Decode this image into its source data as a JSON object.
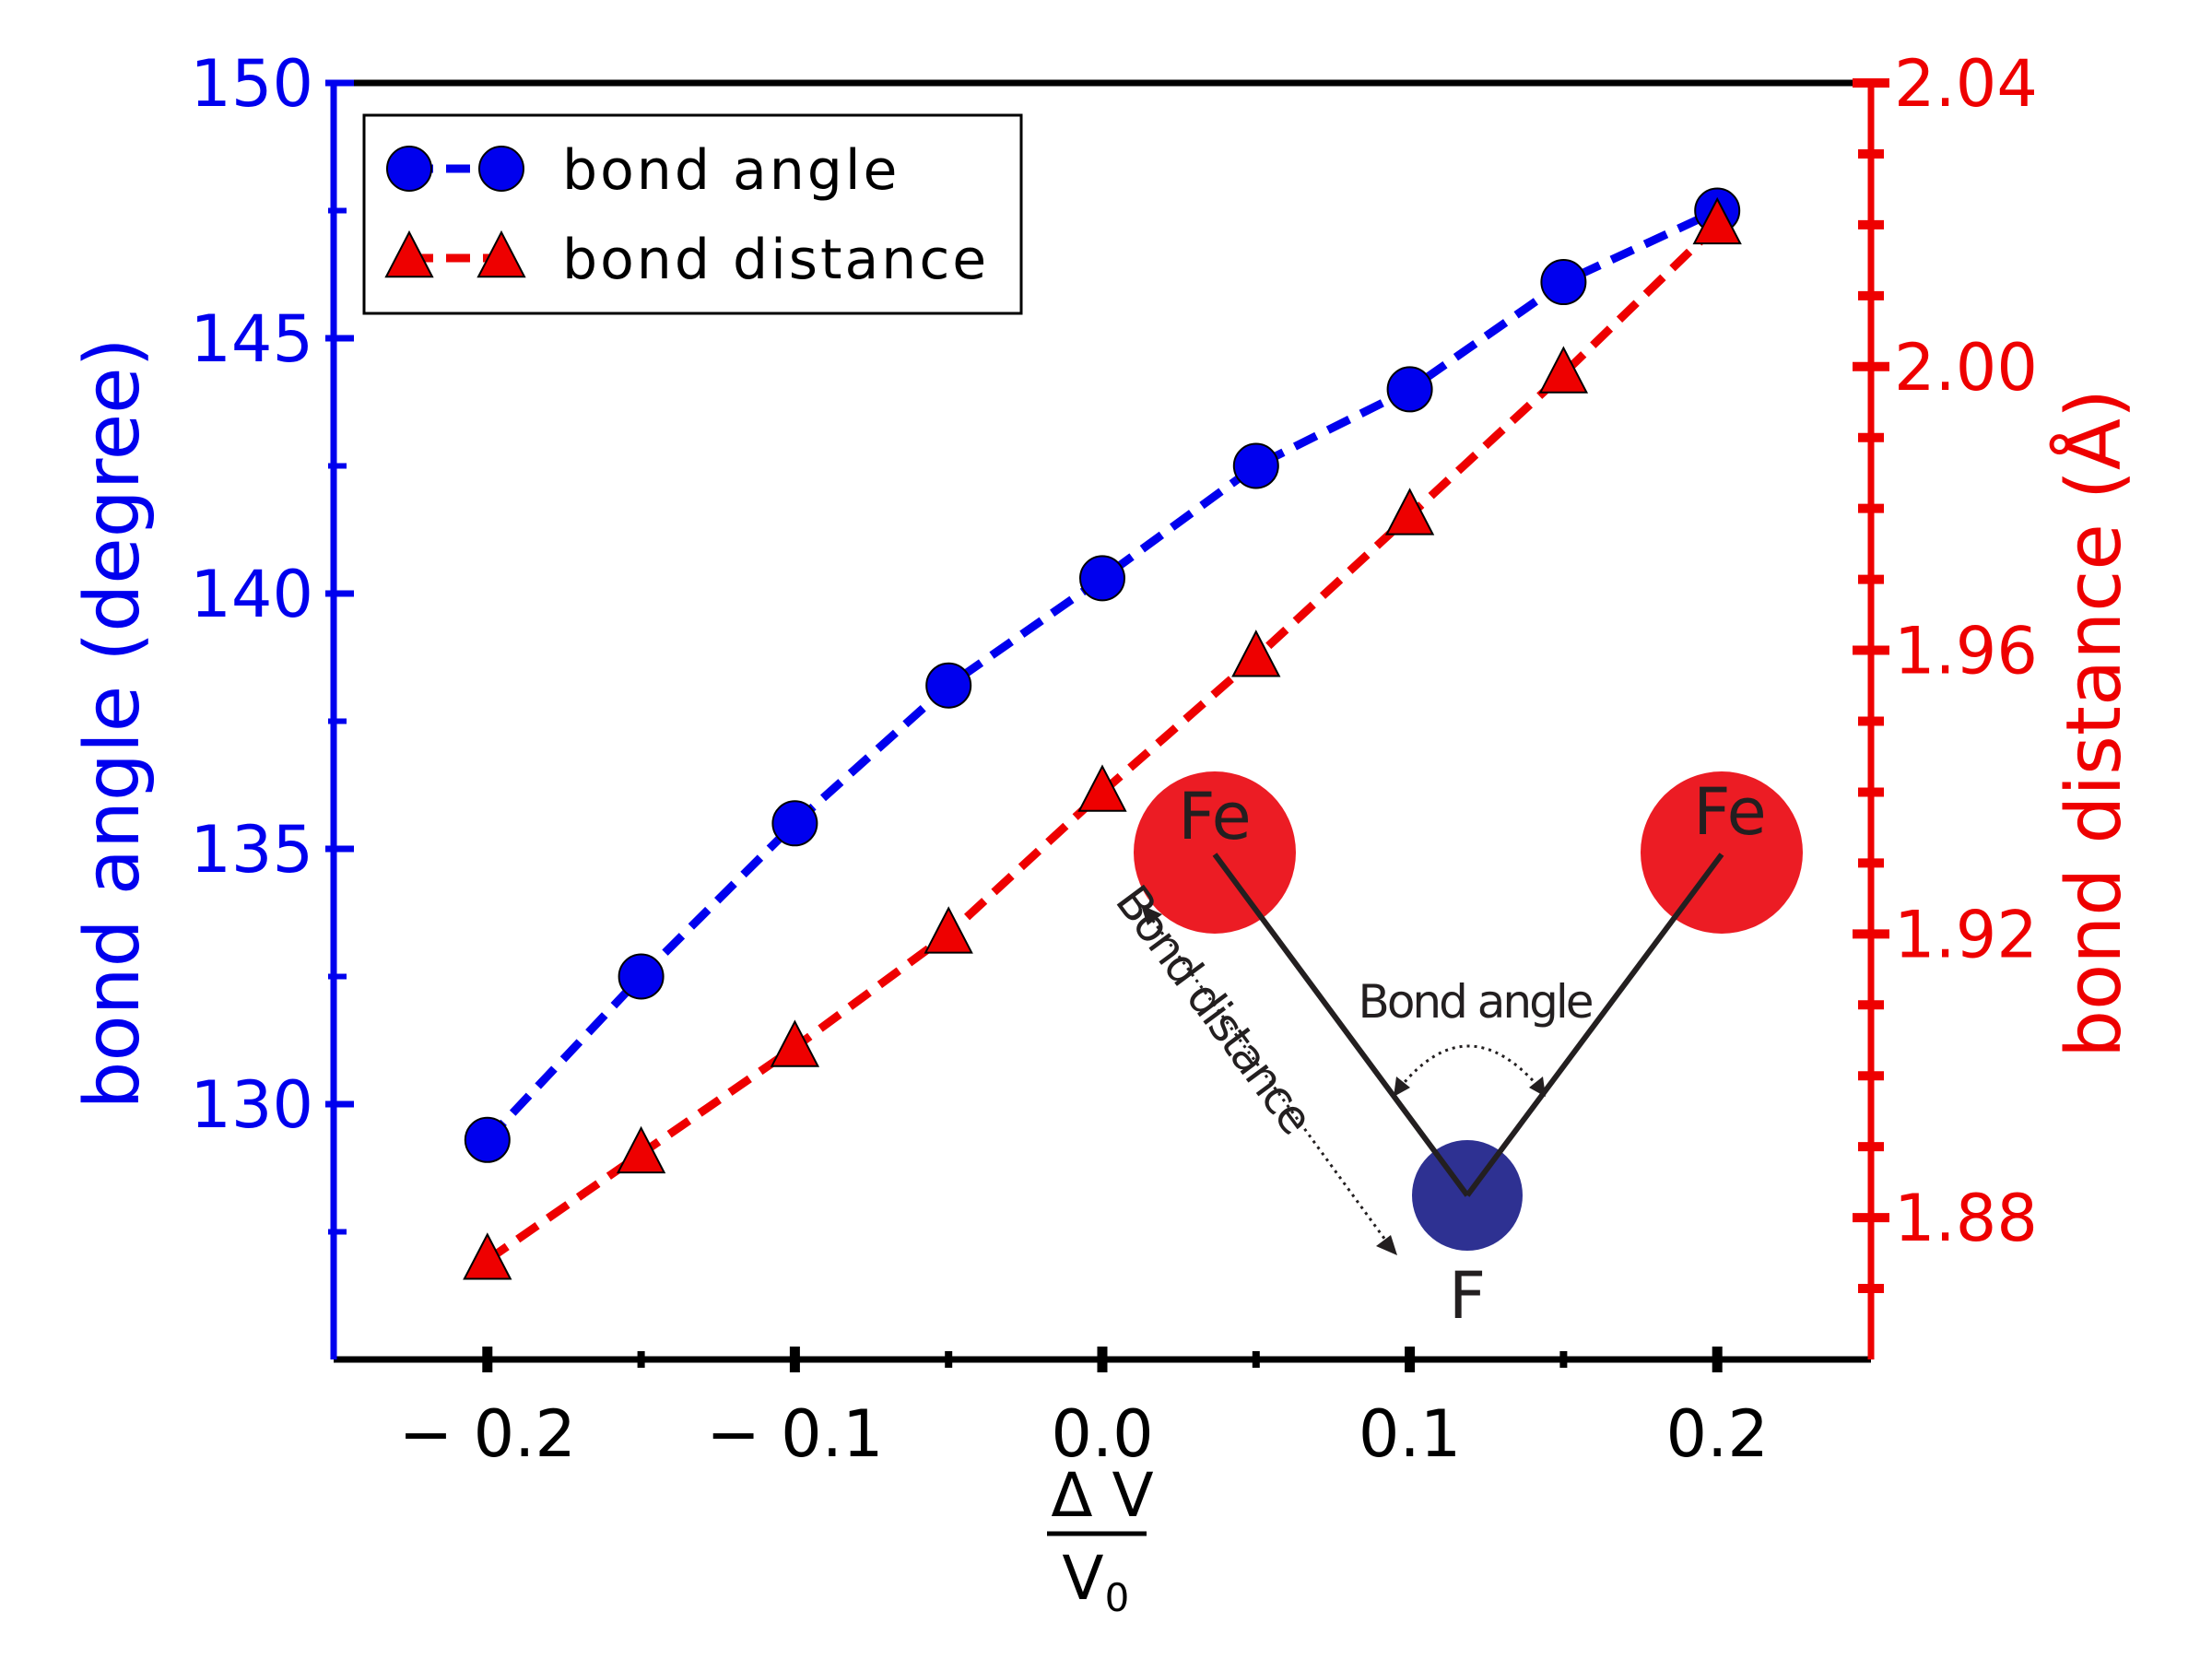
{
  "chart_data": {
    "type": "line",
    "title": "",
    "x": [
      -0.2,
      -0.15,
      -0.1,
      -0.05,
      0.0,
      0.05,
      0.1,
      0.15,
      0.2
    ],
    "xlim": [
      -0.25,
      0.25
    ],
    "x_major_ticks": [
      -0.2,
      -0.1,
      0.0,
      0.1,
      0.2
    ],
    "x_minor_ticks": [
      -0.15,
      -0.05,
      0.05,
      0.15
    ],
    "x_tick_labels": [
      "− 0.2",
      "− 0.1",
      "0.0",
      "0.1",
      "0.2"
    ],
    "xlabel": {
      "numerator": "Δ V",
      "denominator_main": "V",
      "denominator_sub": "0"
    },
    "left_axis": {
      "label": "bond angle (degree)",
      "ylim": [
        125,
        150
      ],
      "major_ticks": [
        130,
        135,
        140,
        145,
        150
      ],
      "minor_ticks": [
        127.5,
        132.5,
        137.5,
        142.5,
        147.5
      ],
      "tick_labels": [
        "130",
        "135",
        "140",
        "145",
        "150"
      ],
      "color": "#0000ee"
    },
    "right_axis": {
      "label": "bond distance (Å)",
      "ylim": [
        1.86,
        2.04
      ],
      "major_ticks": [
        1.88,
        1.92,
        1.96,
        2.0,
        2.04
      ],
      "minor_ticks": [
        1.87,
        1.89,
        1.9,
        1.91,
        1.93,
        1.94,
        1.95,
        1.97,
        1.98,
        1.99,
        2.01,
        2.02,
        2.03
      ],
      "tick_labels": [
        "1.88",
        "1.92",
        "1.96",
        "2.00",
        "2.04"
      ],
      "color": "#ee0000"
    },
    "series": [
      {
        "name": "bond angle",
        "axis": "left",
        "marker": "circle",
        "line": "dashed",
        "color": "#0000ee",
        "values": [
          129.3,
          132.5,
          135.5,
          138.2,
          140.3,
          142.5,
          144.0,
          146.1,
          147.5
        ]
      },
      {
        "name": "bond distance",
        "axis": "right",
        "marker": "triangle",
        "line": "dashed",
        "color": "#ee0000",
        "values": [
          1.874,
          1.889,
          1.904,
          1.92,
          1.94,
          1.959,
          1.979,
          1.999,
          2.02
        ]
      }
    ],
    "legend": {
      "position": "top-left"
    },
    "grid": false,
    "inset_diagram": {
      "atoms": [
        {
          "label": "Fe",
          "color": "#ec1c24"
        },
        {
          "label": "Fe",
          "color": "#ec1c24"
        },
        {
          "label": "F",
          "color": "#2e3192"
        }
      ],
      "angle_label": "Bond angle",
      "distance_label": "Bond distance"
    }
  }
}
